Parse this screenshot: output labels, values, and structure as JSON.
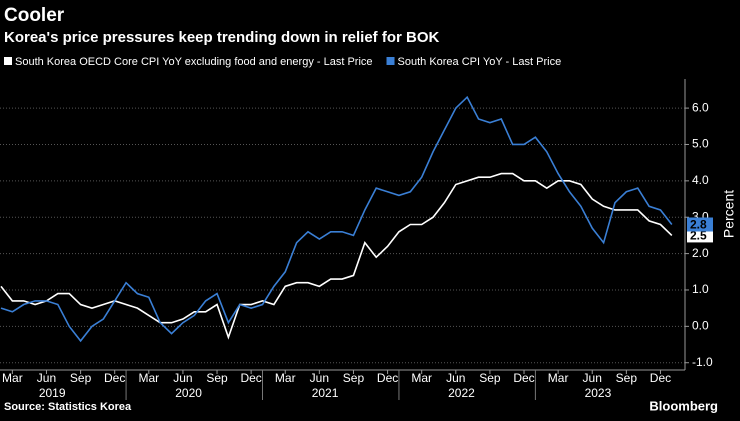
{
  "chart_data": {
    "type": "line",
    "title": "Cooler",
    "subtitle": "Korea's price pressures keep trending down in relief for BOK",
    "y_label": "Percent",
    "source": "Source: Statistics Korea",
    "brand": "Bloomberg",
    "x": [
      "2019-02",
      "2019-03",
      "2019-04",
      "2019-05",
      "2019-06",
      "2019-07",
      "2019-08",
      "2019-09",
      "2019-10",
      "2019-11",
      "2019-12",
      "2020-01",
      "2020-02",
      "2020-03",
      "2020-04",
      "2020-05",
      "2020-06",
      "2020-07",
      "2020-08",
      "2020-09",
      "2020-10",
      "2020-11",
      "2020-12",
      "2021-01",
      "2021-02",
      "2021-03",
      "2021-04",
      "2021-05",
      "2021-06",
      "2021-07",
      "2021-08",
      "2021-09",
      "2021-10",
      "2021-11",
      "2021-12",
      "2022-01",
      "2022-02",
      "2022-03",
      "2022-04",
      "2022-05",
      "2022-06",
      "2022-07",
      "2022-08",
      "2022-09",
      "2022-10",
      "2022-11",
      "2022-12",
      "2023-01",
      "2023-02",
      "2023-03",
      "2023-04",
      "2023-05",
      "2023-06",
      "2023-07",
      "2023-08",
      "2023-09",
      "2023-10",
      "2023-11",
      "2023-12",
      "2024-01"
    ],
    "series": [
      {
        "name": "South Korea OECD Core CPI YoY excluding food and energy - Last Price",
        "color": "#ffffff",
        "values": [
          1.1,
          0.7,
          0.7,
          0.6,
          0.7,
          0.9,
          0.9,
          0.6,
          0.5,
          0.6,
          0.7,
          0.6,
          0.5,
          0.3,
          0.1,
          0.1,
          0.2,
          0.4,
          0.4,
          0.6,
          -0.3,
          0.6,
          0.6,
          0.7,
          0.6,
          1.1,
          1.2,
          1.2,
          1.1,
          1.3,
          1.3,
          1.4,
          2.3,
          1.9,
          2.2,
          2.6,
          2.8,
          2.8,
          3.0,
          3.4,
          3.9,
          4.0,
          4.1,
          4.1,
          4.2,
          4.2,
          4.0,
          4.0,
          3.8,
          4.0,
          4.0,
          3.9,
          3.5,
          3.3,
          3.2,
          3.2,
          3.2,
          2.9,
          2.8,
          2.5
        ]
      },
      {
        "name": "South Korea CPI YoY - Last Price",
        "color": "#3a7fd5",
        "values": [
          0.5,
          0.4,
          0.6,
          0.7,
          0.7,
          0.6,
          0.0,
          -0.4,
          0.0,
          0.2,
          0.7,
          1.2,
          0.9,
          0.8,
          0.1,
          -0.2,
          0.1,
          0.3,
          0.7,
          0.9,
          0.1,
          0.6,
          0.5,
          0.6,
          1.1,
          1.5,
          2.3,
          2.6,
          2.4,
          2.6,
          2.6,
          2.5,
          3.2,
          3.8,
          3.7,
          3.6,
          3.7,
          4.1,
          4.8,
          5.4,
          6.0,
          6.3,
          5.7,
          5.6,
          5.7,
          5.0,
          5.0,
          5.2,
          4.8,
          4.2,
          3.7,
          3.3,
          2.7,
          2.3,
          3.4,
          3.7,
          3.8,
          3.3,
          3.2,
          2.8
        ]
      }
    ],
    "ylim": [
      -1.2,
      6.8
    ],
    "yticks": [
      {
        "value": -1,
        "label": "-1.0"
      },
      {
        "value": 0,
        "label": "0.0"
      },
      {
        "value": 1,
        "label": "1.0"
      },
      {
        "value": 2,
        "label": "2.0"
      },
      {
        "value": 3,
        "label": "3.0"
      },
      {
        "value": 4,
        "label": "4.0"
      },
      {
        "value": 5,
        "label": "5.0"
      },
      {
        "value": 6,
        "label": "6.0"
      }
    ],
    "xticks": [
      {
        "value": "2019-03",
        "label": "Mar"
      },
      {
        "value": "2019-06",
        "label": "Jun"
      },
      {
        "value": "2019-09",
        "label": "Sep"
      },
      {
        "value": "2019-12",
        "label": "Dec"
      },
      {
        "value": "2020-03",
        "label": "Mar"
      },
      {
        "value": "2020-06",
        "label": "Jun"
      },
      {
        "value": "2020-09",
        "label": "Sep"
      },
      {
        "value": "2020-12",
        "label": "Dec"
      },
      {
        "value": "2021-03",
        "label": "Mar"
      },
      {
        "value": "2021-06",
        "label": "Jun"
      },
      {
        "value": "2021-09",
        "label": "Sep"
      },
      {
        "value": "2021-12",
        "label": "Dec"
      },
      {
        "value": "2022-03",
        "label": "Mar"
      },
      {
        "value": "2022-06",
        "label": "Jun"
      },
      {
        "value": "2022-09",
        "label": "Sep"
      },
      {
        "value": "2022-12",
        "label": "Dec"
      },
      {
        "value": "2023-03",
        "label": "Mar"
      },
      {
        "value": "2023-06",
        "label": "Jun"
      },
      {
        "value": "2023-09",
        "label": "Sep"
      },
      {
        "value": "2023-12",
        "label": "Dec"
      }
    ],
    "years": [
      "2019",
      "2020",
      "2021",
      "2022",
      "2023"
    ],
    "grid": true
  }
}
